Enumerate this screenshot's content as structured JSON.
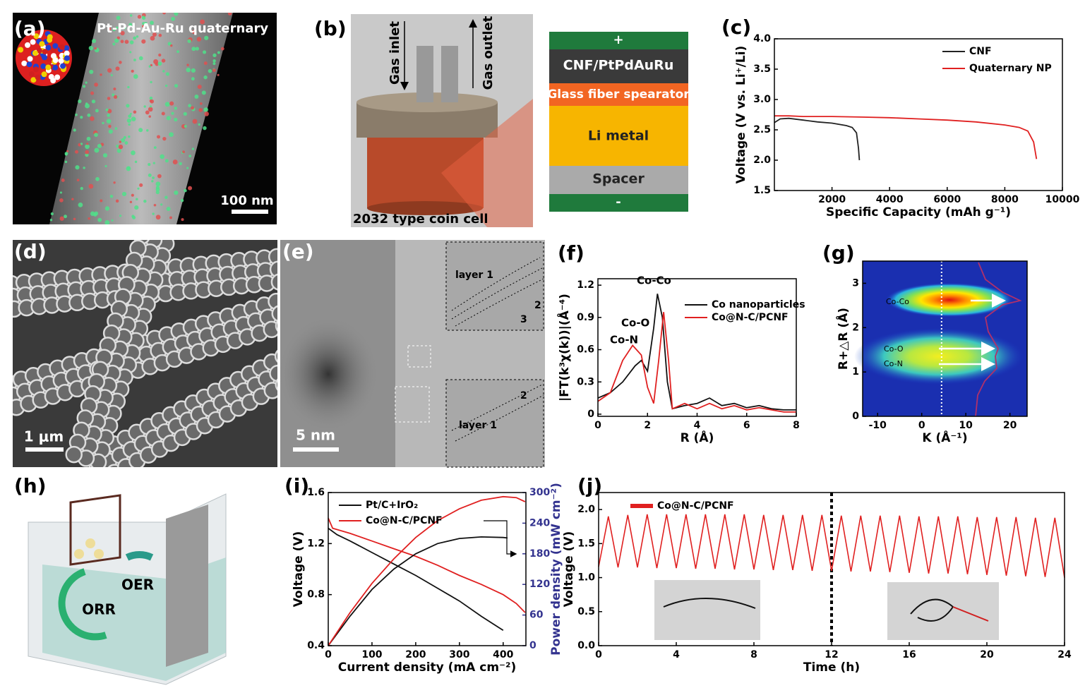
{
  "panels": {
    "a": {
      "label": "(a)",
      "caption": "Pt-Pd-Au-Ru quaternary",
      "scale": "100 nm"
    },
    "b": {
      "label": "(b)",
      "inlet": "Gas inlet",
      "outlet": "Gas outlet",
      "cell": "2032 type coin cell",
      "layers": [
        "+",
        "CNF/PtPdAuRu",
        "Glass fiber spearator",
        "Li metal",
        "Spacer",
        "-"
      ]
    },
    "d": {
      "label": "(d)",
      "scale": "1 μm"
    },
    "e": {
      "label": "(e)",
      "scale": "5 nm",
      "annotations": [
        "layer 1",
        "2",
        "3",
        "2",
        "layer 1"
      ]
    },
    "h": {
      "label": "(h)",
      "annotations": [
        "OER",
        "ORR"
      ]
    }
  },
  "chart_data": [
    {
      "type": "line",
      "label": "(c)",
      "xlabel": "Specific Capacity (mAh g⁻¹)",
      "ylabel": "Voltage (V vs. Li⁺/Li)",
      "xlim": [
        0,
        10000
      ],
      "ylim": [
        1.5,
        4.0
      ],
      "xticks": [
        2000,
        4000,
        6000,
        8000,
        10000
      ],
      "yticks": [
        1.5,
        {
          "value": 2,
          "label": "2.0"
        },
        2.5,
        {
          "value": 3,
          "label": "3.0"
        },
        3.5,
        {
          "value": 4,
          "label": "4.0"
        }
      ],
      "series": [
        {
          "name": "CNF",
          "color": "#222222",
          "x": [
            0,
            200,
            500,
            1000,
            1500,
            2000,
            2500,
            2700,
            2850,
            2920,
            2950
          ],
          "values": [
            2.62,
            2.68,
            2.69,
            2.66,
            2.63,
            2.61,
            2.57,
            2.54,
            2.45,
            2.2,
            2.0
          ]
        },
        {
          "name": "Quaternary NP",
          "color": "#e02020",
          "x": [
            0,
            500,
            1000,
            2000,
            3000,
            4000,
            5000,
            6000,
            7000,
            8000,
            8500,
            8800,
            9000,
            9100
          ],
          "values": [
            2.73,
            2.73,
            2.72,
            2.72,
            2.71,
            2.7,
            2.68,
            2.66,
            2.63,
            2.58,
            2.54,
            2.48,
            2.3,
            2.02
          ]
        }
      ]
    },
    {
      "type": "line",
      "label": "(f)",
      "xlabel": "R (Å)",
      "ylabel": "|FT(k³χ(k))|(Å⁻⁴)",
      "xlim": [
        0,
        8
      ],
      "ylim": [
        -0.02,
        1.26
      ],
      "xticks": [
        0,
        2,
        4,
        6,
        8
      ],
      "yticks": [
        0,
        0.3,
        0.6,
        0.9,
        1.2
      ],
      "annotations": [
        "Co-Co",
        "Co-O",
        "Co-N"
      ],
      "series": [
        {
          "name": "Co nanoparticles",
          "color": "#111111",
          "x": [
            0,
            0.5,
            1,
            1.5,
            1.75,
            2,
            2.25,
            2.4,
            2.6,
            2.8,
            3,
            3.5,
            4,
            4.5,
            5,
            5.5,
            6,
            6.5,
            7,
            7.5,
            8
          ],
          "values": [
            0.15,
            0.2,
            0.3,
            0.45,
            0.5,
            0.4,
            0.8,
            1.12,
            0.9,
            0.3,
            0.05,
            0.08,
            0.1,
            0.15,
            0.08,
            0.1,
            0.06,
            0.08,
            0.05,
            0.04,
            0.04
          ]
        },
        {
          "name": "Co@N-C/PCNF",
          "color": "#e02020",
          "x": [
            0,
            0.5,
            1,
            1.4,
            1.75,
            2,
            2.25,
            2.45,
            2.65,
            2.85,
            3,
            3.5,
            4,
            4.5,
            5,
            5.5,
            6,
            6.5,
            7,
            7.5,
            8
          ],
          "values": [
            0.12,
            0.2,
            0.5,
            0.64,
            0.55,
            0.25,
            0.1,
            0.5,
            0.95,
            0.5,
            0.05,
            0.1,
            0.05,
            0.1,
            0.05,
            0.08,
            0.04,
            0.06,
            0.04,
            0.02,
            0.02
          ]
        }
      ]
    },
    {
      "type": "heatmap",
      "label": "(g)",
      "xlabel": "K (Å⁻¹)",
      "ylabel": "R+△R (Å)",
      "xlim": [
        -13.4,
        23.9
      ],
      "ylim": [
        0,
        3.5
      ],
      "xticks": [
        -10,
        0,
        10,
        20
      ],
      "yticks": [
        0,
        1,
        2,
        3
      ],
      "vline": 4.5,
      "annotations": [
        "Co-Co",
        "Co-O",
        "Co-N"
      ],
      "series": []
    },
    {
      "type": "line",
      "label": "(i)",
      "xlabel": "Current density (mA cm⁻²)",
      "ylabel": "Voltage (V)",
      "y2label": "Power density (mW cm⁻²)",
      "y2_color": "#33338f",
      "xlim": [
        0,
        452
      ],
      "ylim": [
        0.4,
        1.6
      ],
      "y2lim": [
        0,
        300
      ],
      "xticks": [
        0,
        100,
        200,
        300,
        400
      ],
      "yticks": [
        0.4,
        0.8,
        1.2,
        1.6
      ],
      "y2ticks": [
        0,
        60,
        120,
        180,
        240,
        300
      ],
      "series": [
        {
          "name": "Pt/C+IrO₂",
          "color": "#111111",
          "x": [
            0,
            20,
            50,
            100,
            150,
            200,
            250,
            300,
            350,
            400
          ],
          "values": [
            1.32,
            1.27,
            1.22,
            1.13,
            1.04,
            0.95,
            0.85,
            0.75,
            0.63,
            0.52
          ]
        },
        {
          "name": "Co@N-C/PCNF",
          "color": "#e02020",
          "x": [
            0,
            10,
            50,
            100,
            150,
            200,
            250,
            300,
            350,
            400,
            430,
            450
          ],
          "values": [
            1.4,
            1.32,
            1.28,
            1.22,
            1.16,
            1.1,
            1.03,
            0.95,
            0.88,
            0.8,
            0.73,
            0.66
          ]
        },
        {
          "color": "#111111",
          "axis": "y2",
          "x": [
            0,
            50,
            100,
            150,
            200,
            250,
            300,
            350,
            400,
            410
          ],
          "values": [
            0,
            58,
            110,
            150,
            180,
            200,
            210,
            213,
            212,
            211
          ]
        },
        {
          "color": "#e02020",
          "axis": "y2",
          "x": [
            0,
            50,
            100,
            150,
            200,
            250,
            300,
            350,
            400,
            430,
            450
          ],
          "values": [
            0,
            65,
            122,
            170,
            212,
            245,
            268,
            285,
            292,
            290,
            282
          ]
        }
      ]
    },
    {
      "type": "line",
      "label": "(j)",
      "xlabel": "Time (h)",
      "ylabel": "Voltage (V)",
      "xlim": [
        0,
        24
      ],
      "ylim": [
        0,
        2.25
      ],
      "xticks": [
        0,
        4,
        8,
        12,
        16,
        20,
        24
      ],
      "yticks": [
        {
          "value": 0,
          "label": "0.0"
        },
        0.5,
        {
          "value": 1,
          "label": "1.0"
        },
        1.5,
        {
          "value": 2,
          "label": "2.0"
        }
      ],
      "vline": 12,
      "series": [
        {
          "name": "Co@N-C/PCNF",
          "color": "#e02020",
          "x": [
            0,
            0.5,
            1,
            1.5,
            2,
            2.5,
            3,
            3.5,
            4,
            4.5,
            5,
            5.5,
            6,
            6.5,
            7,
            7.5,
            8,
            8.5,
            9,
            9.5,
            10,
            10.5,
            11,
            11.5,
            12,
            12.5,
            13,
            13.5,
            14,
            14.5,
            15,
            15.5,
            16,
            16.5,
            17,
            17.5,
            18,
            18.5,
            19,
            19.5,
            20,
            20.5,
            21,
            21.5,
            22,
            22.5,
            23,
            23.5,
            24
          ],
          "values": [
            1.16,
            1.9,
            1.15,
            1.92,
            1.15,
            1.93,
            1.14,
            1.93,
            1.14,
            1.93,
            1.13,
            1.93,
            1.13,
            1.93,
            1.12,
            1.93,
            1.12,
            1.92,
            1.11,
            1.92,
            1.11,
            1.92,
            1.1,
            1.92,
            1.1,
            1.91,
            1.09,
            1.91,
            1.09,
            1.91,
            1.08,
            1.91,
            1.07,
            1.9,
            1.06,
            1.9,
            1.06,
            1.9,
            1.05,
            1.89,
            1.04,
            1.89,
            1.03,
            1.89,
            1.02,
            1.88,
            1.01,
            1.88,
            1.0
          ]
        }
      ]
    }
  ]
}
